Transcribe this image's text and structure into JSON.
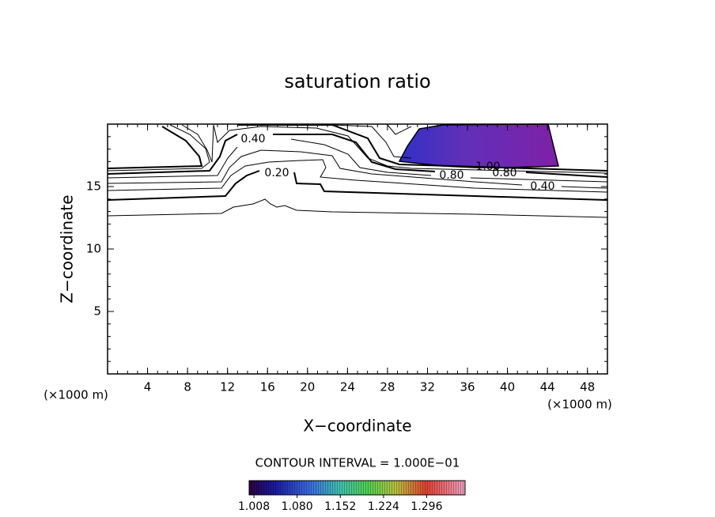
{
  "chart_data": {
    "type": "contour",
    "title": "saturation ratio",
    "xlabel": "X−coordinate",
    "ylabel": "Z−coordinate",
    "x_unit": "(×1000 m)",
    "y_unit": "(×1000 m)",
    "xlim": [
      0,
      50
    ],
    "ylim": [
      0,
      20
    ],
    "xticks": [
      4,
      8,
      12,
      16,
      20,
      24,
      28,
      32,
      36,
      40,
      44,
      48
    ],
    "yticks": [
      5,
      10,
      15
    ],
    "contour_labels": [
      "0.40",
      "0.20",
      "0.80",
      "1.00",
      "0.80",
      "0.40"
    ],
    "contour_interval": "CONTOUR INTERVAL = 1.000E−01",
    "colorbar": {
      "zlim": [
        1.0,
        1.36
      ],
      "ticks": [
        1.008,
        {
          "value": 1.08,
          "label": "1.080"
        },
        1.152,
        1.224,
        1.296
      ]
    }
  }
}
